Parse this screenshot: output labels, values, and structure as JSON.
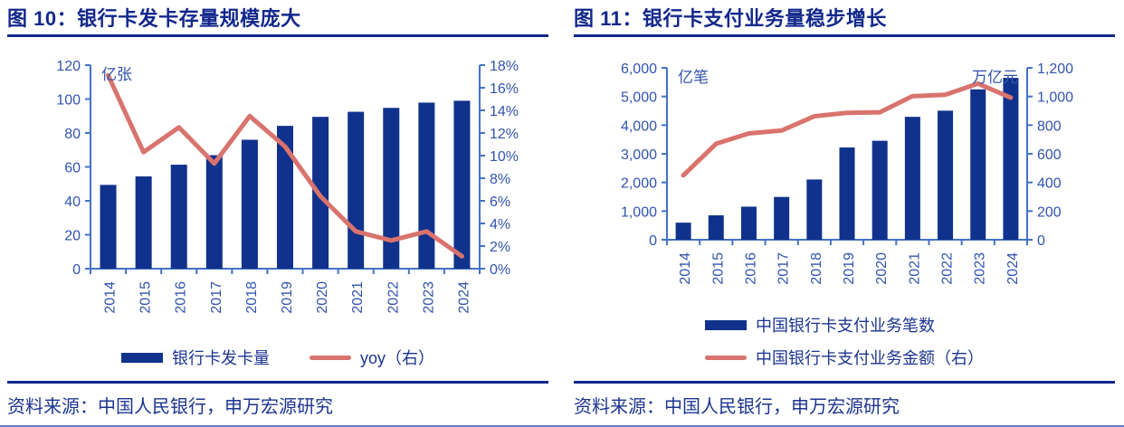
{
  "page": {
    "source_note": "资料来源：中国人民银行，申万宏源研究"
  },
  "colors": {
    "bar_navy": "#10328C",
    "line_red": "#D9736D",
    "axis_blue": "#4472C4",
    "label_blue": "#3353AE",
    "title_navy": "#13288C"
  },
  "chart_data": [
    {
      "name": "figure-10",
      "type": "bar+line",
      "title": "图 10：银行卡发卡存量规模庞大",
      "categories": [
        "2014",
        "2015",
        "2016",
        "2017",
        "2018",
        "2019",
        "2020",
        "2021",
        "2022",
        "2023",
        "2024"
      ],
      "series": [
        {
          "name": "银行卡发卡量",
          "type": "bar",
          "axis": "left",
          "values": [
            49.4,
            54.4,
            61.3,
            66.9,
            76.0,
            84.2,
            89.5,
            92.5,
            94.8,
            97.9,
            99.0
          ]
        },
        {
          "name": "yoy（右）",
          "type": "line",
          "axis": "right",
          "values": [
            17.1,
            10.3,
            12.5,
            9.3,
            13.5,
            10.8,
            6.4,
            3.3,
            2.5,
            3.3,
            1.1
          ]
        }
      ],
      "left_axis": {
        "unit": "亿张",
        "min": 0,
        "max": 120,
        "step": 20,
        "format": "plain"
      },
      "right_axis": {
        "min": 0,
        "max": 18,
        "step": 2,
        "format": "percent"
      },
      "legend_layout": "row",
      "grid": false,
      "legend_position": "bottom"
    },
    {
      "name": "figure-11",
      "type": "bar+line",
      "title": "图 11：银行卡支付业务量稳步增长",
      "categories": [
        "2014",
        "2015",
        "2016",
        "2017",
        "2018",
        "2019",
        "2020",
        "2021",
        "2022",
        "2023",
        "2024"
      ],
      "series": [
        {
          "name": "中国银行卡支付业务笔数",
          "type": "bar",
          "axis": "left",
          "values": [
            596,
            852,
            1155,
            1494,
            2103,
            3220,
            3455,
            4290,
            4505,
            5250,
            5650
          ]
        },
        {
          "name": "中国银行卡支付业务金额（右）",
          "type": "line",
          "axis": "right",
          "values": [
            450,
            670,
            742,
            762,
            862,
            886,
            890,
            1002,
            1012,
            1090,
            992
          ]
        }
      ],
      "left_axis": {
        "unit": "亿笔",
        "min": 0,
        "max": 6000,
        "step": 1000,
        "format": "thousands"
      },
      "right_axis": {
        "unit": "万亿元",
        "min": 0,
        "max": 1200,
        "step": 200,
        "format": "thousands"
      },
      "legend_layout": "stack",
      "grid": false,
      "legend_position": "bottom"
    }
  ]
}
